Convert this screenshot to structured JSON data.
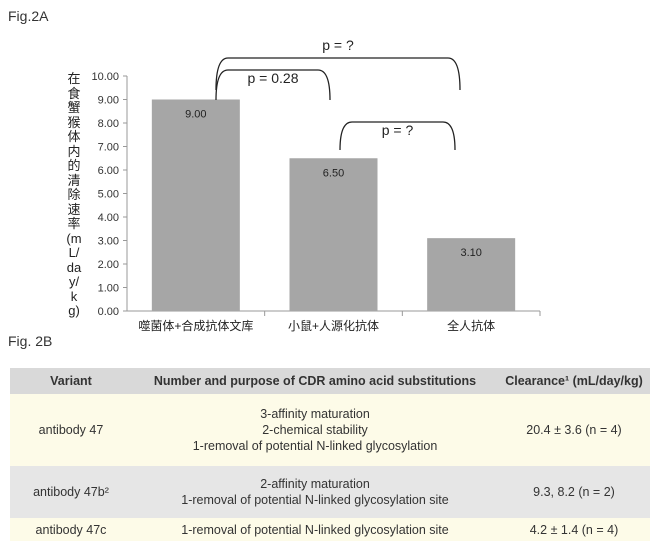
{
  "fig_a": "Fig.2A",
  "fig_b": "Fig. 2B",
  "chart_data": {
    "type": "bar",
    "ylabel": "在食蟹猴体内的清除速率(mL/day/kg)",
    "ylim": [
      0,
      10
    ],
    "yticks": [
      "0.00",
      "1.00",
      "2.00",
      "3.00",
      "4.00",
      "5.00",
      "6.00",
      "7.00",
      "8.00",
      "9.00",
      "10.00"
    ],
    "categories": [
      "噬菌体+合成抗体文库",
      "小鼠+人源化抗体",
      "全人抗体"
    ],
    "values": [
      9.0,
      6.5,
      3.1
    ],
    "data_labels": [
      "9.00",
      "6.50",
      "3.10"
    ],
    "bar_color": "#a6a6a6",
    "annotations": [
      {
        "text": "p = 0.28",
        "between": [
          0,
          1
        ]
      },
      {
        "text": "p = ?",
        "between": [
          1,
          2
        ]
      },
      {
        "text": "p = ?",
        "between": [
          0,
          2
        ]
      }
    ]
  },
  "table": {
    "headers": [
      "Variant",
      "Number and purpose of CDR amino acid substitutions",
      "Clearance¹ (mL/day/kg)"
    ],
    "rows": [
      {
        "variant": "antibody 47",
        "subs": [
          "3-affinity maturation",
          "2-chemical stability",
          "1-removal of potential N-linked glycosylation"
        ],
        "clearance": "20.4 ± 3.6 (n = 4)"
      },
      {
        "variant": "antibody 47b²",
        "subs": [
          "2-affinity maturation",
          "1-removal of potential N-linked glycosylation site"
        ],
        "clearance": "9.3, 8.2 (n = 2)"
      },
      {
        "variant": "antibody 47c",
        "subs": [
          "1-removal of potential N-linked glycosylation site"
        ],
        "clearance": "4.2 ± 1.4 (n = 4)"
      }
    ]
  }
}
